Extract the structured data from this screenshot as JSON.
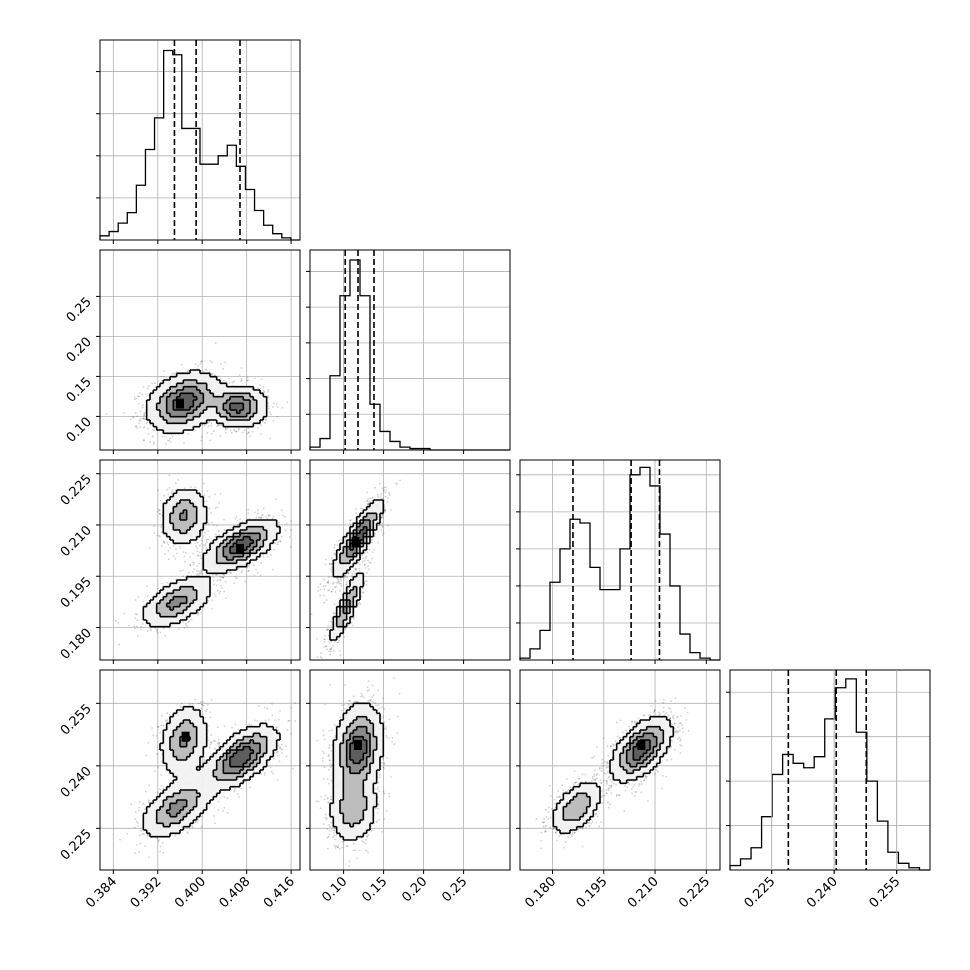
{
  "chart_data": {
    "type": "corner",
    "grid": true,
    "params": [
      {
        "index": 0,
        "range": [
          0.3816,
          0.4176
        ],
        "ticks": [
          0.384,
          0.392,
          0.4,
          0.408,
          0.416
        ],
        "tick_labels": [
          "0.384",
          "0.392",
          "0.400",
          "0.408",
          "0.416"
        ],
        "quantiles": [
          0.395,
          0.3989,
          0.4068
        ],
        "hist_counts": [
          2,
          4,
          8,
          13,
          26,
          43,
          58,
          90,
          88,
          53,
          53,
          36,
          36,
          40,
          45,
          35,
          24,
          14,
          7,
          3,
          1,
          0
        ],
        "hist_ymax": 95,
        "hist_yticks": [
          20,
          40,
          60,
          80
        ]
      },
      {
        "index": 1,
        "range": [
          0.058,
          0.308
        ],
        "ticks": [
          0.1,
          0.15,
          0.2,
          0.25
        ],
        "tick_labels": [
          "0.10",
          "0.15",
          "0.20",
          "0.25"
        ],
        "quantiles": [
          0.102,
          0.118,
          0.138
        ],
        "hist_counts": [
          2,
          8,
          52,
          108,
          133,
          108,
          32,
          13,
          6,
          2,
          1,
          1,
          0,
          0,
          0,
          0,
          0,
          0,
          0,
          0
        ],
        "hist_ymax": 140,
        "hist_yticks": [
          25,
          50,
          75,
          100,
          125
        ]
      },
      {
        "index": 2,
        "range": [
          0.1705,
          0.229
        ],
        "ticks": [
          0.18,
          0.195,
          0.21,
          0.225
        ],
        "tick_labels": [
          "0.180",
          "0.195",
          "0.210",
          "0.225"
        ],
        "quantiles": [
          0.186,
          0.203,
          0.2113
        ],
        "hist_counts": [
          1,
          6,
          16,
          42,
          60,
          76,
          74,
          50,
          38,
          38,
          60,
          100,
          104,
          94,
          68,
          40,
          14,
          4,
          1,
          0
        ],
        "hist_ymax": 108,
        "hist_yticks": [
          20,
          40,
          60,
          80,
          100
        ]
      },
      {
        "index": 3,
        "range": [
          0.215,
          0.263
        ],
        "ticks": [
          0.225,
          0.24,
          0.255
        ],
        "tick_labels": [
          "0.225",
          "0.240",
          "0.255"
        ],
        "quantiles": [
          0.229,
          0.2405,
          0.2477
        ],
        "hist_counts": [
          2,
          5,
          10,
          24,
          43,
          52,
          48,
          46,
          51,
          68,
          82,
          86,
          62,
          40,
          22,
          8,
          3,
          1,
          0
        ],
        "hist_ymax": 90,
        "hist_yticks": [
          20,
          40,
          60,
          80
        ]
      }
    ],
    "pairs": [
      {
        "row": 1,
        "col": 0,
        "modes": [
          {
            "x": 0.3967,
            "y": 0.118,
            "sx": 0.003,
            "sy": 0.017,
            "rho": 0.3,
            "w": 0.65
          },
          {
            "x": 0.4065,
            "y": 0.112,
            "sx": 0.0024,
            "sy": 0.012,
            "rho": 0.0,
            "w": 0.35
          }
        ],
        "peak": {
          "x": 0.396,
          "y": 0.116
        }
      },
      {
        "row": 2,
        "col": 0,
        "modes": [
          {
            "x": 0.3967,
            "y": 0.2125,
            "sx": 0.002,
            "sy": 0.004,
            "rho": 0.1,
            "w": 0.25
          },
          {
            "x": 0.3955,
            "y": 0.1875,
            "sx": 0.003,
            "sy": 0.0035,
            "rho": 0.55,
            "w": 0.3
          },
          {
            "x": 0.407,
            "y": 0.204,
            "sx": 0.003,
            "sy": 0.0035,
            "rho": 0.6,
            "w": 0.45
          }
        ],
        "peak": {
          "x": 0.4068,
          "y": 0.203
        }
      },
      {
        "row": 2,
        "col": 1,
        "modes": [
          {
            "x": 0.118,
            "y": 0.206,
            "sx": 0.014,
            "sy": 0.005,
            "rho": 0.85,
            "w": 0.7
          },
          {
            "x": 0.104,
            "y": 0.186,
            "sx": 0.01,
            "sy": 0.005,
            "rho": 0.85,
            "w": 0.3
          }
        ],
        "peak": {
          "x": 0.115,
          "y": 0.205
        }
      },
      {
        "row": 3,
        "col": 0,
        "modes": [
          {
            "x": 0.3967,
            "y": 0.246,
            "sx": 0.002,
            "sy": 0.004,
            "rho": 0.2,
            "w": 0.25
          },
          {
            "x": 0.3955,
            "y": 0.23,
            "sx": 0.003,
            "sy": 0.0035,
            "rho": 0.55,
            "w": 0.3
          },
          {
            "x": 0.407,
            "y": 0.242,
            "sx": 0.003,
            "sy": 0.0035,
            "rho": 0.6,
            "w": 0.45
          }
        ],
        "peak": {
          "x": 0.397,
          "y": 0.247
        }
      },
      {
        "row": 3,
        "col": 1,
        "modes": [
          {
            "x": 0.118,
            "y": 0.244,
            "sx": 0.014,
            "sy": 0.005,
            "rho": 0.2,
            "w": 0.7
          },
          {
            "x": 0.112,
            "y": 0.23,
            "sx": 0.014,
            "sy": 0.004,
            "rho": 0.1,
            "w": 0.3
          }
        ],
        "peak": {
          "x": 0.118,
          "y": 0.245
        }
      },
      {
        "row": 3,
        "col": 2,
        "modes": [
          {
            "x": 0.206,
            "y": 0.244,
            "sx": 0.004,
            "sy": 0.0035,
            "rho": 0.55,
            "w": 0.7
          },
          {
            "x": 0.187,
            "y": 0.23,
            "sx": 0.0035,
            "sy": 0.003,
            "rho": 0.5,
            "w": 0.3
          }
        ],
        "peak": {
          "x": 0.206,
          "y": 0.245
        }
      }
    ]
  }
}
